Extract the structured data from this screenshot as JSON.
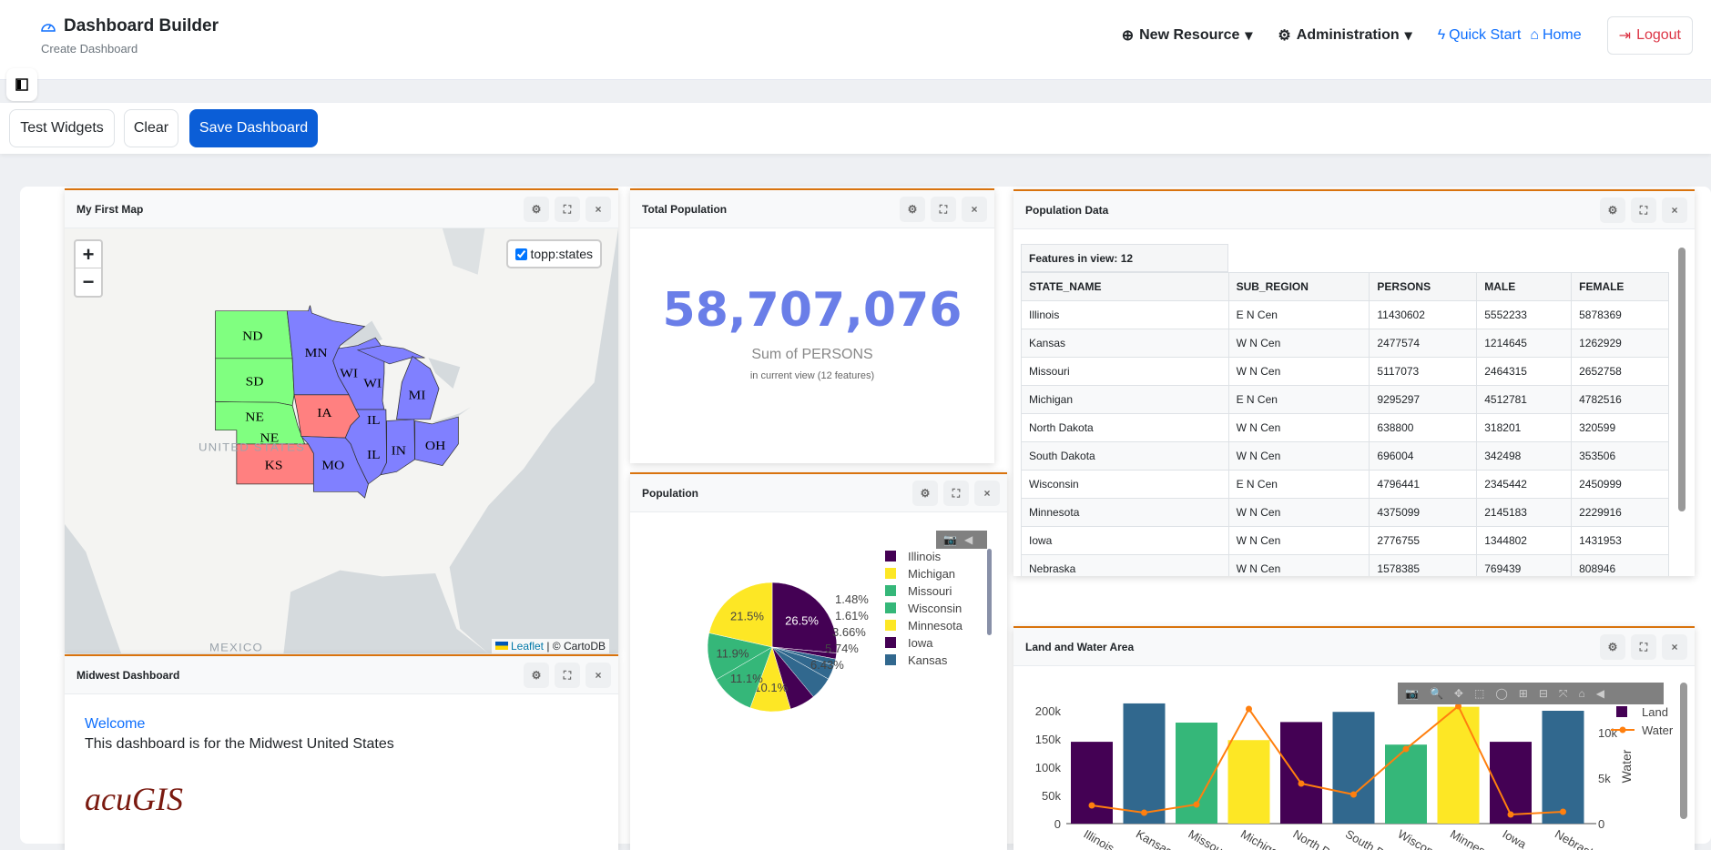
{
  "header": {
    "title": "Dashboard Builder",
    "subtitle": "Create Dashboard",
    "nav": {
      "new_resource": "New Resource",
      "administration": "Administration",
      "quick_start": "Quick Start",
      "home": "Home",
      "logout": "Logout"
    }
  },
  "toolbar": {
    "test_widgets": "Test Widgets",
    "clear": "Clear",
    "save": "Save Dashboard"
  },
  "widgets": {
    "map": {
      "title": "My First Map",
      "layer": "topp:states",
      "attribution_link": "Leaflet",
      "attribution_text": "| © CartoDB",
      "labels": {
        "us": "UNITED STATES",
        "mexico": "MEXICO"
      },
      "states": [
        {
          "abbr": "ND",
          "color": "#80ff80"
        },
        {
          "abbr": "SD",
          "color": "#80ff80"
        },
        {
          "abbr": "NE",
          "color": "#80ff80"
        },
        {
          "abbr": "NE",
          "color": "#80ff80"
        },
        {
          "abbr": "KS",
          "color": "#ff8080"
        },
        {
          "abbr": "IA",
          "color": "#ff8080"
        },
        {
          "abbr": "MN",
          "color": "#8080ff"
        },
        {
          "abbr": "WI",
          "color": "#8080ff"
        },
        {
          "abbr": "WI",
          "color": "#8080ff"
        },
        {
          "abbr": "MI",
          "color": "#8080ff"
        },
        {
          "abbr": "IL",
          "color": "#8080ff"
        },
        {
          "abbr": "IL",
          "color": "#8080ff"
        },
        {
          "abbr": "IN",
          "color": "#8080ff"
        },
        {
          "abbr": "OH",
          "color": "#8080ff"
        },
        {
          "abbr": "MO",
          "color": "#8080ff"
        }
      ]
    },
    "midwest": {
      "title": "Midwest Dashboard",
      "welcome": "Welcome",
      "text": "This dashboard is for the Midwest United States",
      "logo": "acuGIS"
    },
    "total": {
      "title": "Total Population",
      "value": "58,707,076",
      "label": "Sum of PERSONS",
      "sub": "in current view (12 features)",
      "color": "#6a7ee8"
    },
    "pie": {
      "title": "Population"
    },
    "table": {
      "title": "Population Data",
      "features": "Features in view: 12",
      "columns": [
        "STATE_NAME",
        "SUB_REGION",
        "PERSONS",
        "MALE",
        "FEMALE"
      ],
      "rows": [
        [
          "Illinois",
          "E N Cen",
          "11430602",
          "5552233",
          "5878369"
        ],
        [
          "Kansas",
          "W N Cen",
          "2477574",
          "1214645",
          "1262929"
        ],
        [
          "Missouri",
          "W N Cen",
          "5117073",
          "2464315",
          "2652758"
        ],
        [
          "Michigan",
          "E N Cen",
          "9295297",
          "4512781",
          "4782516"
        ],
        [
          "North Dakota",
          "W N Cen",
          "638800",
          "318201",
          "320599"
        ],
        [
          "South Dakota",
          "W N Cen",
          "696004",
          "342498",
          "353506"
        ],
        [
          "Wisconsin",
          "E N Cen",
          "4796441",
          "2345442",
          "2450999"
        ],
        [
          "Minnesota",
          "W N Cen",
          "4375099",
          "2145183",
          "2229916"
        ],
        [
          "Iowa",
          "W N Cen",
          "2776755",
          "1344802",
          "1431953"
        ],
        [
          "Nebraska",
          "W N Cen",
          "1578385",
          "769439",
          "808946"
        ]
      ]
    },
    "bar": {
      "title": "Land and Water Area"
    }
  },
  "chart_data": [
    {
      "type": "pie",
      "direction": "clockwise",
      "slices": [
        {
          "label": "Illinois",
          "percent": 26.5,
          "color": "#440154"
        },
        {
          "label": null,
          "percent": 1.48,
          "color": "#440154"
        },
        {
          "label": null,
          "percent": 1.61,
          "color": "#31688e"
        },
        {
          "label": null,
          "percent": 3.66,
          "color": "#31688e"
        },
        {
          "label": "Kansas",
          "percent": 5.74,
          "color": "#31688e"
        },
        {
          "label": "Iowa",
          "percent": 6.43,
          "color": "#440154"
        },
        {
          "label": "Minnesota",
          "percent": 10.1,
          "color": "#fde725"
        },
        {
          "label": "Wisconsin",
          "percent": 11.1,
          "color": "#35b779"
        },
        {
          "label": "Missouri",
          "percent": 11.9,
          "color": "#35b779"
        },
        {
          "label": "Michigan",
          "percent": 21.5,
          "color": "#fde725"
        }
      ],
      "slice_text": [
        "26.5%",
        "1.48%",
        "1.61%",
        "3.66%",
        "5.74%",
        "6.43%",
        "10.1%",
        "11.1%",
        "11.9%",
        "21.5%"
      ],
      "legend": [
        {
          "name": "Illinois",
          "color": "#440154"
        },
        {
          "name": "Michigan",
          "color": "#fde725"
        },
        {
          "name": "Missouri",
          "color": "#35b779"
        },
        {
          "name": "Wisconsin",
          "color": "#35b779"
        },
        {
          "name": "Minnesota",
          "color": "#fde725"
        },
        {
          "name": "Iowa",
          "color": "#440154"
        },
        {
          "name": "Kansas",
          "color": "#31688e"
        }
      ],
      "legend_position": "right"
    },
    {
      "type": "bar+line",
      "categories": [
        "Illinois",
        "Kansas",
        "Missouri",
        "Michigan",
        "North Dakota",
        "South Dakota",
        "Wisconsin",
        "Minnesota",
        "Iowa",
        "Nebraska"
      ],
      "bar_colors": [
        "#440154",
        "#31688e",
        "#35b779",
        "#fde725",
        "#440154",
        "#31688e",
        "#35b779",
        "#fde725",
        "#440154",
        "#31688e"
      ],
      "series": [
        {
          "name": "Land",
          "type": "bar",
          "axis": "left",
          "values": [
            145000,
            213000,
            179000,
            148000,
            180000,
            198000,
            140000,
            207000,
            145000,
            200000
          ]
        },
        {
          "name": "Water",
          "type": "line",
          "axis": "right",
          "color": "#ff7f0e",
          "values": [
            2000,
            1200,
            2100,
            12600,
            4400,
            3200,
            8200,
            12900,
            1000,
            1300
          ]
        }
      ],
      "y_left": {
        "range": [
          0,
          215000
        ],
        "ticks": [
          "0",
          "50k",
          "100k",
          "150k",
          "200k"
        ],
        "tick_values": [
          0,
          50000,
          100000,
          150000,
          200000
        ]
      },
      "y_right": {
        "label": "Water",
        "range": [
          0,
          13000
        ],
        "ticks": [
          "0",
          "5k",
          "10k"
        ],
        "tick_values": [
          0,
          5000,
          10000
        ]
      },
      "legend_position": "top-right"
    }
  ]
}
